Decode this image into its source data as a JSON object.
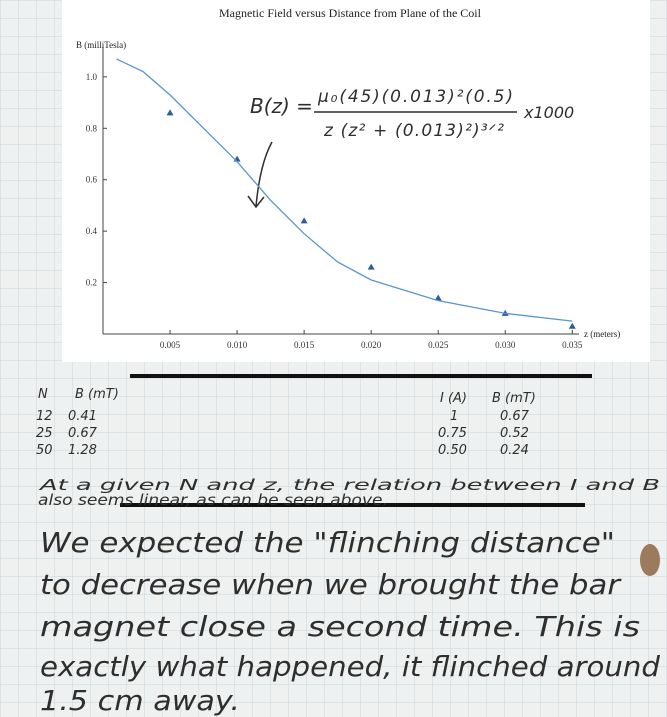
{
  "chart_data": {
    "type": "scatter",
    "title": "Magnetic Field versus Distance from Plane of the Coil",
    "y_label": "B (milliTesla)",
    "x_label": "z (meters)",
    "series": [
      {
        "type": "scatter",
        "color": "#2b5d9c",
        "x": [
          0.005,
          0.01,
          0.015,
          0.02,
          0.025,
          0.03,
          0.035
        ],
        "values": [
          0.86,
          0.68,
          0.44,
          0.26,
          0.14,
          0.08,
          0.03
        ]
      },
      {
        "type": "line",
        "color": "#5a95cf",
        "x": [
          0.001,
          0.003,
          0.005,
          0.0075,
          0.01,
          0.0125,
          0.015,
          0.0175,
          0.02,
          0.025,
          0.03,
          0.035
        ],
        "values": [
          1.07,
          1.02,
          0.93,
          0.8,
          0.67,
          0.52,
          0.39,
          0.28,
          0.21,
          0.13,
          0.08,
          0.05
        ]
      }
    ],
    "xlim": [
      0,
      0.0355
    ],
    "ylim": [
      0,
      1.12
    ],
    "xticks": [
      0.005,
      {
        "value": 0.01,
        "label": "0.010"
      },
      0.015,
      {
        "value": 0.02,
        "label": "0.020"
      },
      0.025,
      {
        "value": 0.03,
        "label": "0.030"
      },
      0.035
    ],
    "yticks": [
      0.2,
      0.4,
      0.6,
      0.8,
      {
        "value": 1,
        "label": "1.0"
      }
    ],
    "formula": {
      "lhs": "B(z) =",
      "numerator": "μ₀(45)(0.013)²(0.5)",
      "denominator": "z (z² + (0.013)²)³ᐟ²",
      "factor": "x1000"
    }
  },
  "table_left": {
    "header": [
      "N",
      "B (mT)"
    ],
    "rows": [
      [
        "12",
        "0.41"
      ],
      [
        "25",
        "0.67"
      ],
      [
        "50",
        "1.28"
      ]
    ]
  },
  "table_right": {
    "header": [
      "I (A)",
      "B (mT)"
    ],
    "rows": [
      [
        "1",
        "0.67"
      ],
      [
        "0.75",
        "0.52"
      ],
      [
        "0.50",
        "0.24"
      ]
    ]
  },
  "note": [
    "At a given N and z, the relation between I and B",
    "also seems linear, as can be seen above."
  ],
  "paragraph": [
    "We expected the \"flinching distance\"",
    "to decrease when we brought the bar",
    "magnet close a second time. This is",
    "exactly what happened, it flinched around",
    "1.5 cm away."
  ]
}
